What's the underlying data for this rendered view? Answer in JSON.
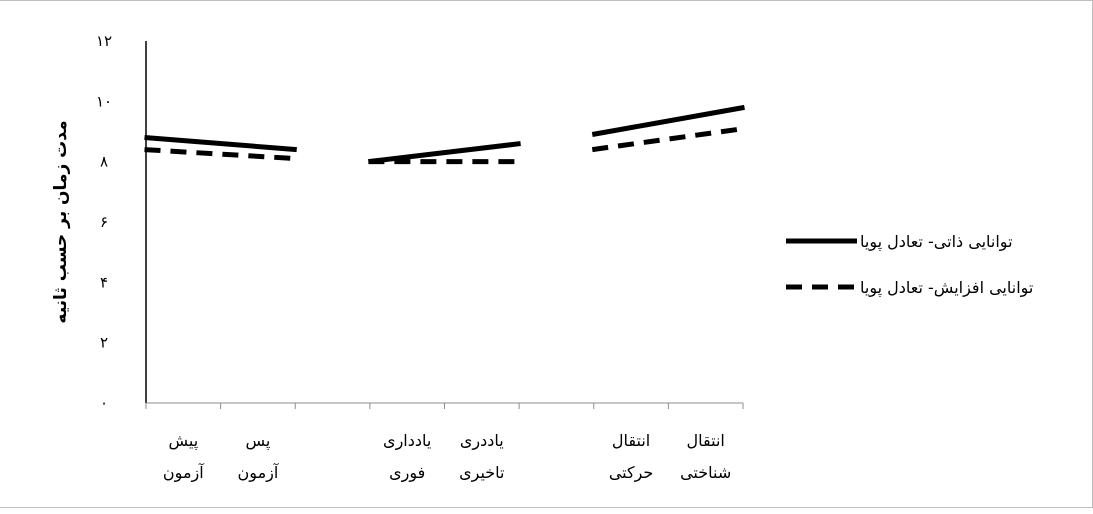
{
  "chart_data": {
    "type": "line",
    "title": "",
    "xlabel": "",
    "ylabel": "مدت زمان بر حسب ثانیه",
    "ylim": [
      0,
      12
    ],
    "yticks": [
      "۰",
      "۲",
      "۴",
      "۶",
      "۸",
      "۱۰",
      "۱۲"
    ],
    "categories": [
      [
        "پیش",
        "آزمون"
      ],
      [
        "پس",
        "آزمون"
      ],
      [
        "",
        ""
      ],
      [
        "یادداری",
        "فوری"
      ],
      [
        "یاددری",
        "تاخیری"
      ],
      [
        "",
        ""
      ],
      [
        "انتقال",
        "حرکتی"
      ],
      [
        "انتقال",
        "شناختی"
      ]
    ],
    "series": [
      {
        "name": "توانایی ذاتی-  تعادل پویا",
        "style": "solid",
        "segments": [
          {
            "from": 0,
            "to": 1,
            "values": [
              8.8,
              8.4
            ]
          },
          {
            "from": 3,
            "to": 4,
            "values": [
              8.0,
              8.6
            ]
          },
          {
            "from": 6,
            "to": 7,
            "values": [
              8.9,
              9.8
            ]
          }
        ]
      },
      {
        "name": "توانایی افزایش-  تعادل پویا",
        "style": "dashed",
        "segments": [
          {
            "from": 0,
            "to": 1,
            "values": [
              8.4,
              8.1
            ]
          },
          {
            "from": 3,
            "to": 4,
            "values": [
              8.0,
              8.0
            ]
          },
          {
            "from": 6,
            "to": 7,
            "values": [
              8.4,
              9.1
            ]
          }
        ]
      }
    ],
    "grid": false,
    "legend_position": "right"
  }
}
